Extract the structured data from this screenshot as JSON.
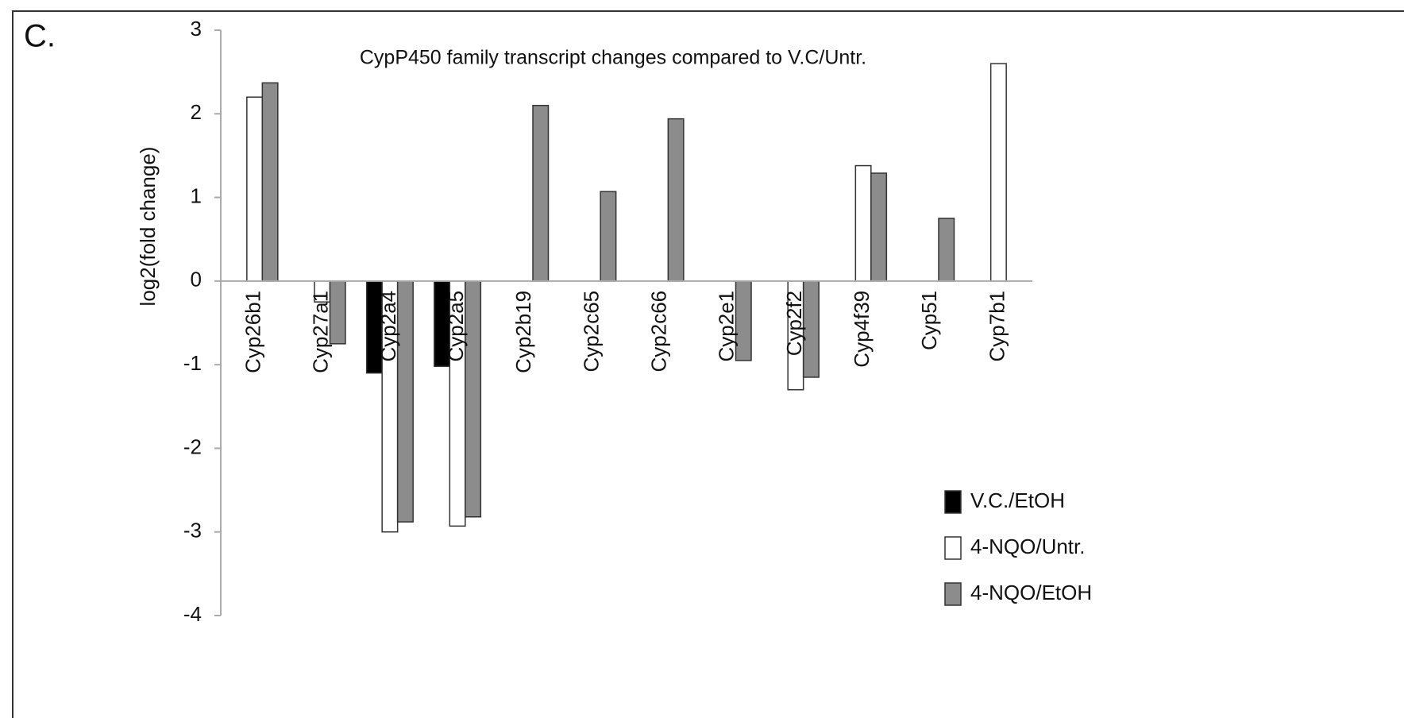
{
  "chart_data": {
    "type": "bar",
    "panel_label": "C.",
    "title": "CypP450 family transcript changes compared to V.C/Untr.",
    "y_axis_label": "log2(fold change)",
    "categories": [
      "Cyp26b1",
      "Cyp27a1",
      "Cyp2a4",
      "Cyp2a5",
      "Cyp2b19",
      "Cyp2c65",
      "Cyp2c66",
      "Cyp2e1",
      "Cyp2f2",
      "Cyp4f39",
      "Cyp51",
      "Cyp7b1"
    ],
    "series": [
      {
        "name": "V.C./EtOH",
        "color": "#000000",
        "values": [
          null,
          null,
          -1.1,
          -1.02,
          null,
          null,
          null,
          null,
          null,
          null,
          null,
          null
        ]
      },
      {
        "name": "4-NQO/Untr.",
        "color": "#ffffff",
        "values": [
          2.2,
          -0.25,
          -3.0,
          -2.93,
          null,
          null,
          null,
          null,
          -1.3,
          1.38,
          null,
          2.6
        ]
      },
      {
        "name": "4-NQO/EtOH",
        "color": "#8c8c8c",
        "values": [
          2.37,
          -0.75,
          -2.88,
          -2.82,
          2.1,
          1.07,
          1.94,
          -0.95,
          -1.15,
          1.29,
          0.75,
          null
        ]
      }
    ],
    "ylim": [
      -4,
      3
    ],
    "yticks": [
      -4,
      -3,
      -2,
      -1,
      0,
      1,
      2,
      3
    ],
    "legend": "lower right"
  }
}
